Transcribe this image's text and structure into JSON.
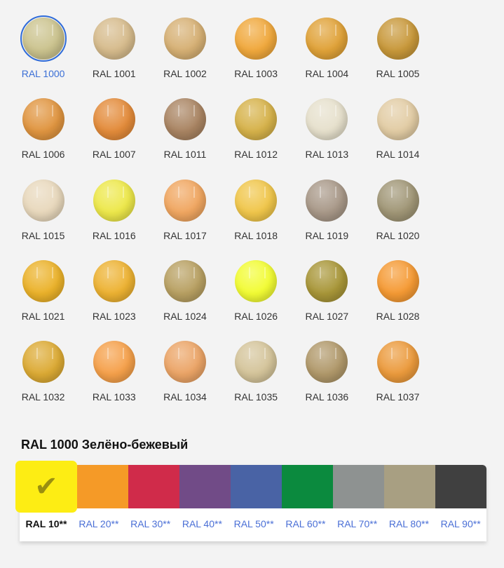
{
  "swatches": [
    {
      "label": "RAL 1000",
      "color": "#cbc38e",
      "selected": true
    },
    {
      "label": "RAL 1001",
      "color": "#d6bb8c"
    },
    {
      "label": "RAL 1002",
      "color": "#d6b074"
    },
    {
      "label": "RAL 1003",
      "color": "#f0a83c"
    },
    {
      "label": "RAL 1004",
      "color": "#e0a238"
    },
    {
      "label": "RAL 1005",
      "color": "#c8983a"
    },
    {
      "label": "RAL 1006",
      "color": "#e09540"
    },
    {
      "label": "RAL 1007",
      "color": "#e38b3a"
    },
    {
      "label": "RAL 1011",
      "color": "#a98462"
    },
    {
      "label": "RAL 1012",
      "color": "#d6b24a"
    },
    {
      "label": "RAL 1013",
      "color": "#e6e0cc"
    },
    {
      "label": "RAL 1014",
      "color": "#e2cca4"
    },
    {
      "label": "RAL 1015",
      "color": "#e8d8bc"
    },
    {
      "label": "RAL 1016",
      "color": "#ede84a"
    },
    {
      "label": "RAL 1017",
      "color": "#f0a660"
    },
    {
      "label": "RAL 1018",
      "color": "#f0c64a"
    },
    {
      "label": "RAL 1019",
      "color": "#a89888"
    },
    {
      "label": "RAL 1020",
      "color": "#a09676"
    },
    {
      "label": "RAL 1021",
      "color": "#ebb22a"
    },
    {
      "label": "RAL 1023",
      "color": "#edb232"
    },
    {
      "label": "RAL 1024",
      "color": "#b8a062"
    },
    {
      "label": "RAL 1026",
      "color": "#f2fc34"
    },
    {
      "label": "RAL 1027",
      "color": "#a89638"
    },
    {
      "label": "RAL 1028",
      "color": "#f59a34"
    },
    {
      "label": "RAL 1032",
      "color": "#dcaa34"
    },
    {
      "label": "RAL 1033",
      "color": "#f5a04a"
    },
    {
      "label": "RAL 1034",
      "color": "#eba466"
    },
    {
      "label": "RAL 1035",
      "color": "#d4c49a"
    },
    {
      "label": "RAL 1036",
      "color": "#b0986a"
    },
    {
      "label": "RAL 1037",
      "color": "#eb9a3c"
    }
  ],
  "selected_title": "RAL 1000 Зелёно-бежевый",
  "selected_check": "✔",
  "groups": [
    {
      "label": "RAL 10**",
      "color": "#fded14",
      "active": true
    },
    {
      "label": "RAL 20**",
      "color": "#f59a27"
    },
    {
      "label": "RAL 30**",
      "color": "#d02b4a"
    },
    {
      "label": "RAL 40**",
      "color": "#714b87"
    },
    {
      "label": "RAL 50**",
      "color": "#4963a5"
    },
    {
      "label": "RAL 60**",
      "color": "#0b8a3e"
    },
    {
      "label": "RAL 70**",
      "color": "#8e9291"
    },
    {
      "label": "RAL 80**",
      "color": "#a89f82"
    },
    {
      "label": "RAL 90**",
      "color": "#404040"
    }
  ]
}
